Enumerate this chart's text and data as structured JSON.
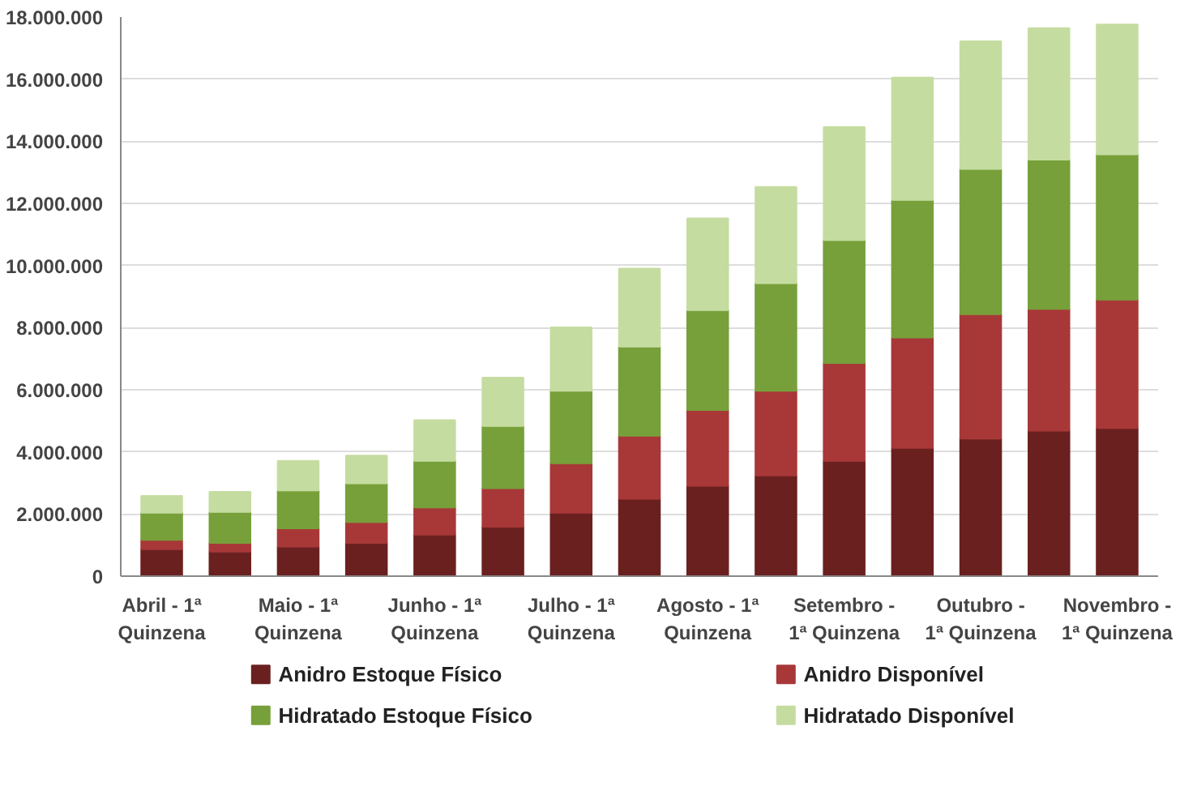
{
  "chart_data": {
    "type": "bar",
    "stacked": true,
    "categories": [
      "Abril - 1ª Quinzena",
      null,
      "Maio - 1ª Quinzena",
      null,
      "Junho - 1ª Quinzena",
      null,
      "Julho - 1ª Quinzena",
      null,
      "Agosto - 1ª Quinzena",
      null,
      "Setembro - 1ª Quinzena",
      null,
      "Outubro - 1ª Quinzena",
      null,
      "Novembro - 1ª Quinzena"
    ],
    "series": [
      {
        "name": "Anidro Estoque Físico",
        "color": "#6b2020",
        "values": [
          870000,
          790000,
          950000,
          1070000,
          1340000,
          1590000,
          2040000,
          2490000,
          2910000,
          3240000,
          3710000,
          4130000,
          4430000,
          4680000,
          4770000
        ]
      },
      {
        "name": "Anidro Disponível",
        "color": "#a83838",
        "values": [
          300000,
          280000,
          590000,
          670000,
          870000,
          1240000,
          1590000,
          2030000,
          2440000,
          2730000,
          3150000,
          3550000,
          4000000,
          3920000,
          4130000
        ]
      },
      {
        "name": "Hidratado Estoque Físico",
        "color": "#77a03a",
        "values": [
          870000,
          1000000,
          1220000,
          1250000,
          1500000,
          2000000,
          2340000,
          2870000,
          3210000,
          3460000,
          3960000,
          4430000,
          4680000,
          4810000,
          4680000
        ]
      },
      {
        "name": "Hidratado Disponível",
        "color": "#c5dca0",
        "values": [
          540000,
          640000,
          950000,
          890000,
          1310000,
          1560000,
          2040000,
          2510000,
          2960000,
          3100000,
          3640000,
          3940000,
          4110000,
          4230000,
          4180000
        ]
      }
    ],
    "ylim": [
      0,
      18000000
    ],
    "yticks": [
      0,
      {
        "value": 2000000,
        "label": "2.000.000"
      },
      {
        "value": 4000000,
        "label": "4.000.000"
      },
      {
        "value": 6000000,
        "label": "6.000.000"
      },
      {
        "value": 8000000,
        "label": "8.000.000"
      },
      {
        "value": 10000000,
        "label": "10.000.000"
      },
      {
        "value": 12000000,
        "label": "12.000.000"
      },
      {
        "value": 14000000,
        "label": "14.000.000"
      },
      {
        "value": 16000000,
        "label": "16.000.000"
      },
      {
        "value": 18000000,
        "label": "18.000.000"
      }
    ],
    "grid": "y",
    "legend": "bottom"
  }
}
